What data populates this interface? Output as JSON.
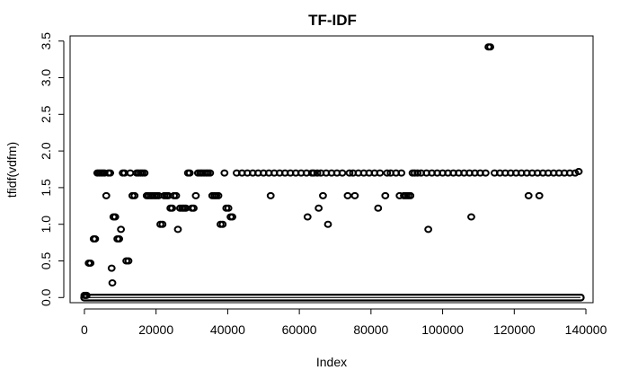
{
  "chart_data": {
    "type": "scatter",
    "title": "TF-IDF",
    "xlabel": "Index",
    "ylabel": "tfidf(vdfm)",
    "xlim": [
      -4000,
      142000
    ],
    "ylim": [
      -0.07,
      3.57
    ],
    "x_ticks": [
      0,
      20000,
      40000,
      60000,
      80000,
      100000,
      120000,
      140000
    ],
    "x_tick_labels": [
      "0",
      "20000",
      "40000",
      "60000",
      "80000",
      "100000",
      "120000",
      "140000"
    ],
    "y_ticks": [
      0.0,
      0.5,
      1.0,
      1.5,
      2.0,
      2.5,
      3.0,
      3.5
    ],
    "y_tick_labels": [
      "0.0",
      "0.5",
      "1.0",
      "1.5",
      "2.0",
      "2.5",
      "3.0",
      "3.5"
    ],
    "grid": false,
    "legend": "none",
    "point_style": "open-circle",
    "baseline": {
      "y": 0.0,
      "x_range": [
        0,
        138500
      ]
    },
    "series": [
      {
        "x": [
          0,
          300,
          600,
          1200,
          1700,
          2600,
          3000,
          3600,
          4100,
          4600,
          5100,
          5600,
          6100,
          6700,
          7200,
          7600,
          7800,
          8100,
          8600,
          9200,
          9700,
          10200,
          10700,
          11200,
          11700,
          12300,
          12800,
          13400,
          14000,
          14600,
          15100,
          15700,
          16200,
          16800,
          17400,
          17900,
          18500,
          19000,
          19600,
          20100,
          20700,
          21200,
          21800,
          22300,
          22900,
          23400,
          24000,
          24500,
          25000,
          25600,
          26100,
          26700,
          27300,
          27800,
          28300,
          28900,
          29400,
          30000,
          30500,
          31100,
          31700,
          32300,
          32800,
          33400,
          34000,
          34500,
          35100,
          35700,
          36300,
          36800,
          37400,
          38000,
          38600,
          39100,
          39600,
          40200,
          40800,
          41300,
          42500,
          44000,
          45500,
          47000,
          48500,
          50000,
          51500,
          52000,
          53000,
          54500,
          56000,
          57500,
          59000,
          60500,
          62000,
          62300,
          63500,
          64000,
          65000,
          65400,
          66000,
          66600,
          67500,
          68000,
          69000,
          70500,
          72000,
          73500,
          74000,
          75000,
          75500,
          76500,
          78000,
          79500,
          81000,
          82000,
          82500,
          84000,
          84500,
          85500,
          87000,
          88000,
          88500,
          89200,
          89800,
          90400,
          91000,
          91600,
          92200,
          93000,
          94000,
          95500,
          96000,
          97000,
          98500,
          100000,
          101500,
          103000,
          104500,
          106000,
          107500,
          108000,
          109000,
          110500,
          112000,
          112800,
          113300,
          114500,
          116000,
          117500,
          119000,
          120500,
          122000,
          123500,
          124000,
          125000,
          126500,
          127000,
          128000,
          129500,
          131000,
          132500,
          134000,
          135500,
          137000,
          138000
        ],
        "y": [
          0.03,
          0.03,
          0.03,
          0.47,
          0.47,
          0.8,
          0.8,
          1.7,
          1.7,
          1.7,
          1.7,
          1.7,
          1.39,
          1.7,
          1.7,
          0.4,
          0.2,
          1.1,
          1.1,
          0.8,
          0.8,
          0.93,
          1.7,
          1.7,
          0.5,
          0.5,
          1.7,
          1.39,
          1.39,
          1.7,
          1.7,
          1.7,
          1.7,
          1.7,
          1.39,
          1.39,
          1.39,
          1.39,
          1.39,
          1.39,
          1.39,
          1.0,
          1.0,
          1.39,
          1.39,
          1.39,
          1.22,
          1.22,
          1.39,
          1.39,
          0.93,
          1.22,
          1.22,
          1.22,
          1.22,
          1.7,
          1.7,
          1.22,
          1.22,
          1.39,
          1.7,
          1.7,
          1.7,
          1.7,
          1.7,
          1.7,
          1.7,
          1.39,
          1.39,
          1.39,
          1.39,
          1.0,
          1.0,
          1.7,
          1.22,
          1.22,
          1.1,
          1.1,
          1.7,
          1.7,
          1.7,
          1.7,
          1.7,
          1.7,
          1.7,
          1.39,
          1.7,
          1.7,
          1.7,
          1.7,
          1.7,
          1.7,
          1.7,
          1.1,
          1.7,
          1.7,
          1.7,
          1.22,
          1.7,
          1.39,
          1.7,
          1.0,
          1.7,
          1.7,
          1.7,
          1.39,
          1.7,
          1.7,
          1.39,
          1.7,
          1.7,
          1.7,
          1.7,
          1.22,
          1.7,
          1.39,
          1.7,
          1.7,
          1.7,
          1.39,
          1.7,
          1.39,
          1.39,
          1.39,
          1.39,
          1.7,
          1.7,
          1.7,
          1.7,
          1.7,
          0.93,
          1.7,
          1.7,
          1.7,
          1.7,
          1.7,
          1.7,
          1.7,
          1.7,
          1.1,
          1.7,
          1.7,
          1.7,
          3.42,
          3.42,
          1.7,
          1.7,
          1.7,
          1.7,
          1.7,
          1.7,
          1.7,
          1.39,
          1.7,
          1.7,
          1.39,
          1.7,
          1.7,
          1.7,
          1.7,
          1.7,
          1.7,
          1.7,
          1.72
        ]
      }
    ]
  }
}
